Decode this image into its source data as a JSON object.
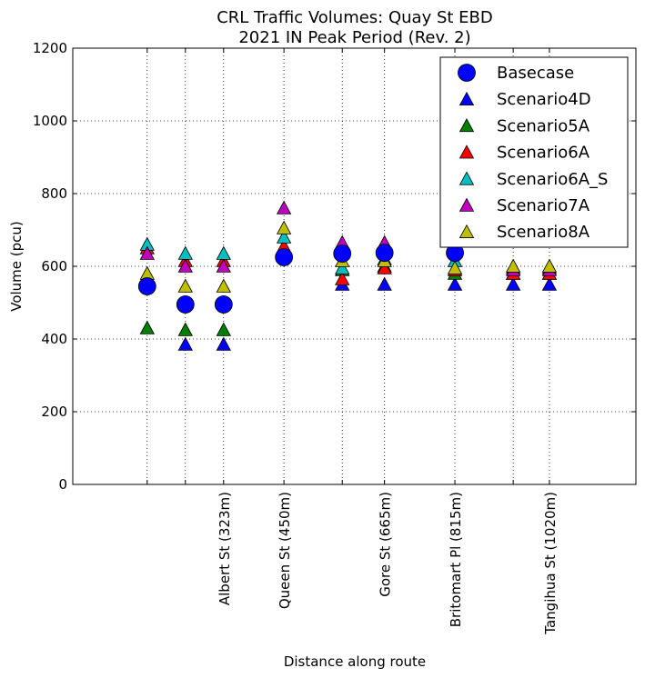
{
  "chart_data": {
    "type": "scatter",
    "title": "CRL Traffic Volumes: Quay St EBD",
    "subtitle": "2021 IN Peak Period (Rev. 2)",
    "xlabel": "Distance along route",
    "ylabel": "Volume (pcu)",
    "ylim": [
      0,
      1200
    ],
    "xlim": [
      0,
      1400
    ],
    "yticks": [
      0,
      200,
      400,
      600,
      800,
      1000,
      1200
    ],
    "xticks": [
      {
        "pos": 185,
        "label": ""
      },
      {
        "pos": 280,
        "label": ""
      },
      {
        "pos": 375,
        "label": "Albert St (323m)"
      },
      {
        "pos": 525,
        "label": "Queen St (450m)"
      },
      {
        "pos": 670,
        "label": ""
      },
      {
        "pos": 775,
        "label": "Gore St (665m)"
      },
      {
        "pos": 950,
        "label": "Britomart Pl (815m)"
      },
      {
        "pos": 1095,
        "label": ""
      },
      {
        "pos": 1185,
        "label": "Tangihua St (1020m)"
      }
    ],
    "grid": true,
    "legend_position": "top-right",
    "series": [
      {
        "name": "Basecase",
        "marker": "circle",
        "color": "#0000ff",
        "x": [
          185,
          280,
          375,
          525,
          670,
          775,
          950
        ],
        "y": [
          545,
          495,
          495,
          625,
          635,
          637,
          637
        ]
      },
      {
        "name": "Scenario4D",
        "marker": "triangle",
        "color": "#0000ff",
        "x": [
          280,
          375,
          670,
          775,
          950,
          1095,
          1185
        ],
        "y": [
          385,
          385,
          550,
          550,
          550,
          550,
          550
        ]
      },
      {
        "name": "Scenario5A",
        "marker": "triangle",
        "color": "#007f00",
        "x": [
          185,
          280,
          375,
          525,
          670,
          775,
          950,
          1095,
          1185
        ],
        "y": [
          430,
          425,
          425,
          640,
          590,
          600,
          580,
          580,
          580
        ]
      },
      {
        "name": "Scenario6A",
        "marker": "triangle",
        "color": "#ff0000",
        "x": [
          185,
          280,
          375,
          525,
          670,
          775,
          950,
          1095,
          1185
        ],
        "y": [
          650,
          615,
          615,
          655,
          565,
          595,
          590,
          580,
          580
        ]
      },
      {
        "name": "Scenario6A_S",
        "marker": "triangle",
        "color": "#00bfbf",
        "x": [
          185,
          280,
          375,
          525,
          670,
          775,
          950,
          1095,
          1185
        ],
        "y": [
          660,
          635,
          635,
          680,
          595,
          620,
          615,
          595,
          595
        ]
      },
      {
        "name": "Scenario7A",
        "marker": "triangle",
        "color": "#bf00bf",
        "x": [
          185,
          280,
          375,
          525,
          670,
          775,
          950,
          1095,
          1185
        ],
        "y": [
          635,
          600,
          600,
          760,
          665,
          665,
          650,
          590,
          590
        ]
      },
      {
        "name": "Scenario8A",
        "marker": "triangle",
        "color": "#bfbf00",
        "x": [
          185,
          280,
          375,
          525,
          670,
          775,
          950,
          1095,
          1185
        ],
        "y": [
          580,
          545,
          545,
          705,
          615,
          615,
          595,
          600,
          600
        ]
      }
    ]
  }
}
